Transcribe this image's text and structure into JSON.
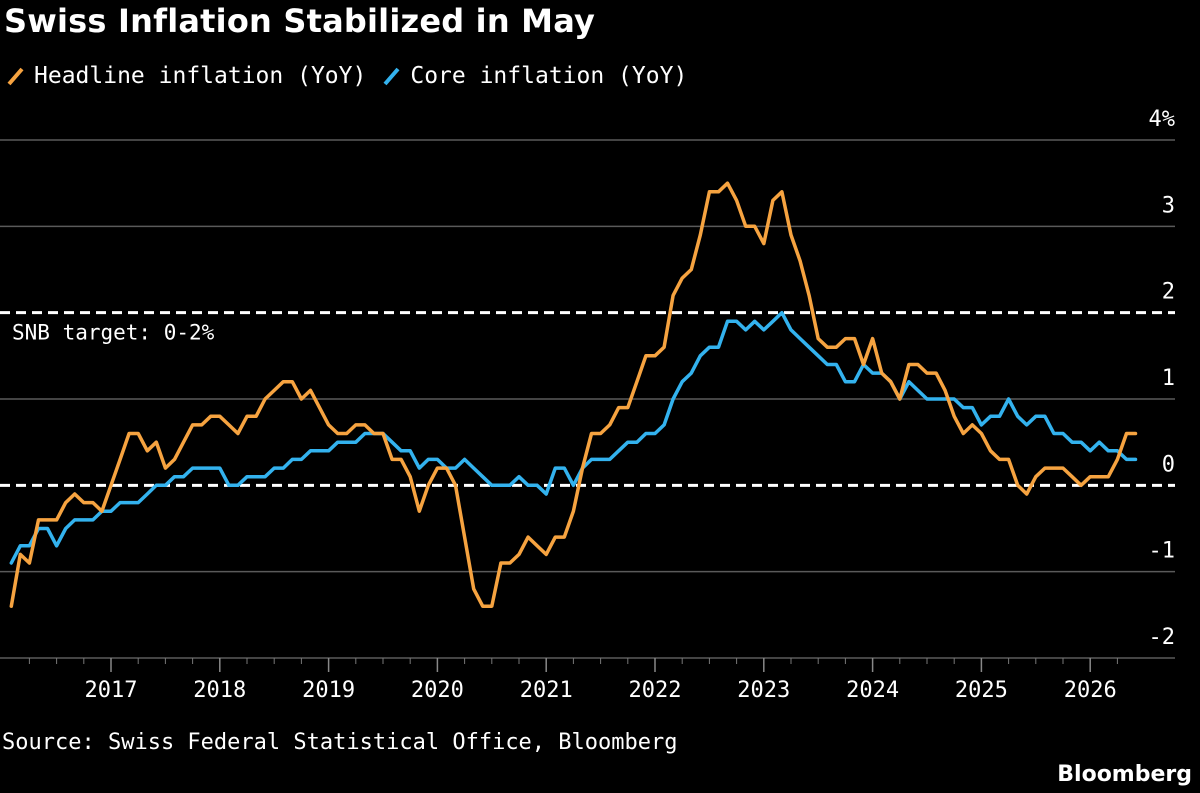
{
  "title": "Swiss Inflation Stabilized in May",
  "legend": [
    {
      "label": "Headline inflation (YoY)",
      "color": "#f6a340"
    },
    {
      "label": "Core inflation (YoY)",
      "color": "#33b2ee"
    }
  ],
  "source": "Source: Swiss Federal Statistical Office, Bloomberg",
  "brand": "Bloomberg",
  "chart_data": {
    "type": "line",
    "title": "Swiss Inflation Stabilized in May",
    "xlabel": "",
    "ylabel": "",
    "ylim": [
      -2,
      4
    ],
    "y_ticks": [
      "4%",
      "3",
      "2",
      "1",
      "0",
      "-1",
      "-2"
    ],
    "x_ticks": [
      "2017",
      "2018",
      "2019",
      "2020",
      "2021",
      "2022",
      "2023",
      "2024",
      "2025",
      "2026"
    ],
    "x_start": "2016-02",
    "frequency": "monthly",
    "grid": true,
    "reference_lines": [
      {
        "value": 2,
        "style": "dashed",
        "label": "SNB target: 0-2%"
      },
      {
        "value": 0,
        "style": "dashed",
        "label": ""
      }
    ],
    "series": [
      {
        "name": "Headline inflation (YoY)",
        "color": "#f6a340",
        "values": [
          -1.4,
          -0.8,
          -0.9,
          -0.4,
          -0.4,
          -0.4,
          -0.2,
          -0.1,
          -0.2,
          -0.2,
          -0.3,
          0.0,
          0.3,
          0.6,
          0.6,
          0.4,
          0.5,
          0.2,
          0.3,
          0.5,
          0.7,
          0.7,
          0.8,
          0.8,
          0.7,
          0.6,
          0.8,
          0.8,
          1.0,
          1.1,
          1.2,
          1.2,
          1.0,
          1.1,
          0.9,
          0.7,
          0.6,
          0.6,
          0.7,
          0.7,
          0.6,
          0.6,
          0.3,
          0.3,
          0.1,
          -0.3,
          0.0,
          0.2,
          0.2,
          0.0,
          -0.6,
          -1.2,
          -1.4,
          -1.4,
          -0.9,
          -0.9,
          -0.8,
          -0.6,
          -0.7,
          -0.8,
          -0.6,
          -0.6,
          -0.3,
          0.2,
          0.6,
          0.6,
          0.7,
          0.9,
          0.9,
          1.2,
          1.5,
          1.5,
          1.6,
          2.2,
          2.4,
          2.5,
          2.9,
          3.4,
          3.4,
          3.5,
          3.3,
          3.0,
          3.0,
          2.8,
          3.3,
          3.4,
          2.9,
          2.6,
          2.2,
          1.7,
          1.6,
          1.6,
          1.7,
          1.7,
          1.4,
          1.7,
          1.3,
          1.2,
          1.0,
          1.4,
          1.4,
          1.3,
          1.3,
          1.1,
          0.8,
          0.6,
          0.7,
          0.6,
          0.4,
          0.3,
          0.3,
          0.0,
          -0.1,
          0.1,
          0.2,
          0.2,
          0.2,
          0.1,
          0.0,
          0.1,
          0.1,
          0.1,
          0.3,
          0.6,
          0.6
        ]
      },
      {
        "name": "Core inflation (YoY)",
        "color": "#33b2ee",
        "values": [
          -0.9,
          -0.7,
          -0.7,
          -0.5,
          -0.5,
          -0.7,
          -0.5,
          -0.4,
          -0.4,
          -0.4,
          -0.3,
          -0.3,
          -0.2,
          -0.2,
          -0.2,
          -0.1,
          0.0,
          0.0,
          0.1,
          0.1,
          0.2,
          0.2,
          0.2,
          0.2,
          0.0,
          0.0,
          0.1,
          0.1,
          0.1,
          0.2,
          0.2,
          0.3,
          0.3,
          0.4,
          0.4,
          0.4,
          0.5,
          0.5,
          0.5,
          0.6,
          0.6,
          0.6,
          0.5,
          0.4,
          0.4,
          0.2,
          0.3,
          0.3,
          0.2,
          0.2,
          0.3,
          0.2,
          0.1,
          0.0,
          0.0,
          0.0,
          0.1,
          0.0,
          0.0,
          -0.1,
          0.2,
          0.2,
          0.0,
          0.2,
          0.3,
          0.3,
          0.3,
          0.4,
          0.5,
          0.5,
          0.6,
          0.6,
          0.7,
          1.0,
          1.2,
          1.3,
          1.5,
          1.6,
          1.6,
          1.9,
          1.9,
          1.8,
          1.9,
          1.8,
          1.9,
          2.0,
          1.8,
          1.7,
          1.6,
          1.5,
          1.4,
          1.4,
          1.2,
          1.2,
          1.4,
          1.3,
          1.3,
          1.2,
          1.0,
          1.2,
          1.1,
          1.0,
          1.0,
          1.0,
          1.0,
          0.9,
          0.9,
          0.7,
          0.8,
          0.8,
          1.0,
          0.8,
          0.7,
          0.8,
          0.8,
          0.6,
          0.6,
          0.5,
          0.5,
          0.4,
          0.5,
          0.4,
          0.4,
          0.3,
          0.3
        ]
      }
    ]
  }
}
